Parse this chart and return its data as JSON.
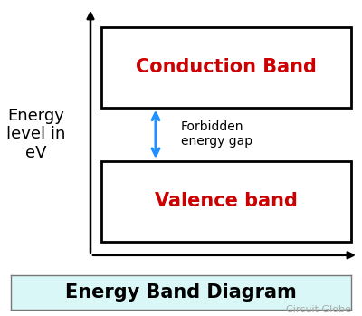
{
  "background_color": "#ffffff",
  "caption_bg_color": "#d9f7f7",
  "caption_text": "Energy Band Diagram",
  "caption_text_color": "#000000",
  "caption_fontsize": 15,
  "watermark_text": "Circuit Globe",
  "watermark_color": "#aaaaaa",
  "watermark_fontsize": 8,
  "ylabel_text": "Energy\nlevel in\neV",
  "ylabel_fontsize": 13,
  "conduction_label": "Conduction Band",
  "valence_label": "Valence band",
  "band_label_color": "#cc0000",
  "band_label_fontsize": 15,
  "band_fill_color": "#ffffff",
  "band_edge_color": "#000000",
  "band_linewidth": 2.0,
  "forbidden_text": "Forbidden\nenergy gap",
  "forbidden_fontsize": 10,
  "forbidden_text_color": "#000000",
  "arrow_color": "#1e90ff",
  "axis_color": "#000000",
  "axis_lw": 1.8
}
